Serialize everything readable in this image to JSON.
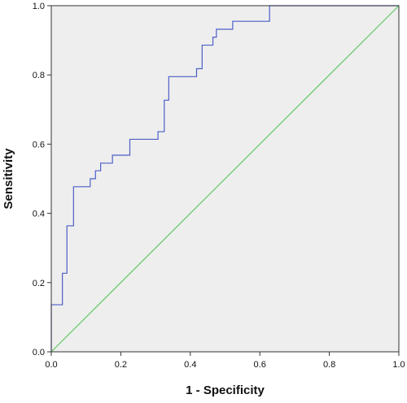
{
  "chart_data": {
    "type": "line",
    "title": "",
    "xlabel": "1 - Specificity",
    "ylabel": "Sensitivity",
    "xlim": [
      0,
      1
    ],
    "ylim": [
      0,
      1
    ],
    "xticks": [
      "0.0",
      "0.2",
      "0.4",
      "0.6",
      "0.8",
      "1.0"
    ],
    "yticks": [
      "0.0",
      "0.2",
      "0.4",
      "0.6",
      "0.8",
      "1.0"
    ],
    "grid": false,
    "legend": "none",
    "colors": {
      "plot_background": "#eeeeee",
      "roc_curve": "#4d5ec7",
      "reference_line": "#5fc95f",
      "axes": "#333333"
    },
    "series": [
      {
        "style": "step",
        "x": [
          0,
          0,
          0.032,
          0.032,
          0.045,
          0.045,
          0.064,
          0.064,
          0.112,
          0.112,
          0.127,
          0.127,
          0.142,
          0.142,
          0.176,
          0.176,
          0.226,
          0.226,
          0.307,
          0.307,
          0.325,
          0.325,
          0.338,
          0.338,
          0.418,
          0.418,
          0.434,
          0.434,
          0.465,
          0.465,
          0.475,
          0.475,
          0.522,
          0.522,
          0.548,
          0.548,
          0.628,
          0.628,
          1.0
        ],
        "y": [
          0,
          0.136,
          0.136,
          0.227,
          0.227,
          0.364,
          0.364,
          0.477,
          0.477,
          0.5,
          0.5,
          0.523,
          0.523,
          0.545,
          0.545,
          0.568,
          0.568,
          0.614,
          0.614,
          0.636,
          0.636,
          0.727,
          0.727,
          0.795,
          0.795,
          0.818,
          0.818,
          0.886,
          0.886,
          0.909,
          0.909,
          0.932,
          0.932,
          0.955,
          0.955,
          0.955,
          0.955,
          1.0,
          1.0
        ]
      },
      {
        "style": "diagonal",
        "x": [
          0,
          1
        ],
        "y": [
          0,
          1
        ]
      }
    ]
  }
}
